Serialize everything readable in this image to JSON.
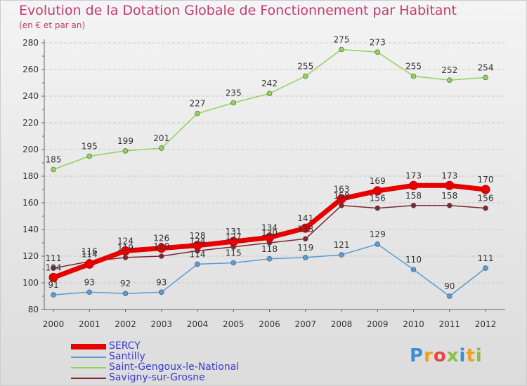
{
  "title": "Evolution de la Dotation Globale de Fonctionnement par Habitant",
  "subtitle": "(en € et par an)",
  "logo": {
    "text": "Proxiti",
    "colors": [
      "#3a8fd6",
      "#f0a020",
      "#e04848",
      "#88c040",
      "#3a8fd6",
      "#f0a020",
      "#88c040"
    ]
  },
  "chart_data": {
    "type": "line",
    "title": "Evolution de la Dotation Globale de Fonctionnement par Habitant",
    "ylabel": "(en € et par an)",
    "categories": [
      "2000",
      "2001",
      "2002",
      "2003",
      "2004",
      "2005",
      "2006",
      "2007",
      "2008",
      "2009",
      "2010",
      "2011",
      "2012"
    ],
    "ylim": [
      80,
      280
    ],
    "yticks": [
      80,
      100,
      120,
      140,
      160,
      180,
      200,
      220,
      240,
      260,
      280
    ],
    "series": [
      {
        "name": "SERCY",
        "color": "#e60000",
        "values": [
          104,
          114,
          124,
          126,
          128,
          131,
          134,
          141,
          163,
          169,
          173,
          173,
          170
        ]
      },
      {
        "name": "Santilly",
        "color": "#5b9bd5",
        "values": [
          91,
          93,
          92,
          93,
          114,
          115,
          118,
          119,
          121,
          129,
          110,
          90,
          111
        ]
      },
      {
        "name": "Saint-Gengoux-le-National",
        "color": "#8fd35a",
        "values": [
          185,
          195,
          199,
          201,
          227,
          235,
          242,
          255,
          275,
          273,
          255,
          252,
          254
        ]
      },
      {
        "name": "Savigny-sur-Grosne",
        "color": "#7a2a30",
        "values": [
          111,
          116,
          119,
          120,
          124,
          127,
          130,
          133,
          158,
          156,
          158,
          158,
          156
        ]
      }
    ]
  }
}
